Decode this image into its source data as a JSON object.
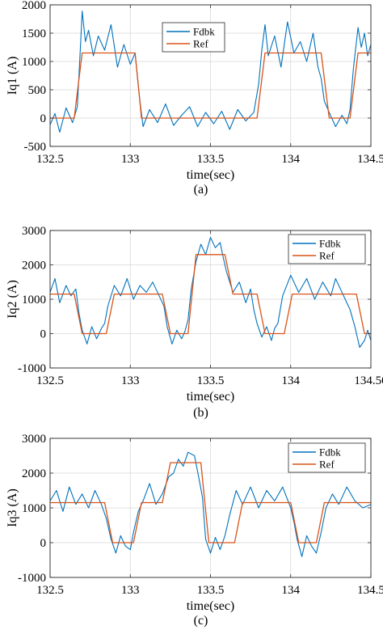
{
  "chart_data": [
    {
      "type": "line",
      "panel_caption": "(a)",
      "xlabel": "time(sec)",
      "ylabel": "Iq1 (A)",
      "xlim": [
        132.5,
        134.5
      ],
      "ylim": [
        -500,
        2000
      ],
      "xticks": [
        132.5,
        133,
        133.5,
        134,
        134.5
      ],
      "xtick_labels": [
        "132.5",
        "133",
        "133.5",
        "134",
        "134.5"
      ],
      "yticks": [
        -500,
        0,
        500,
        1000,
        1500,
        2000
      ],
      "ytick_labels": [
        "-500",
        "0",
        "500",
        "1000",
        "1500",
        "2000"
      ],
      "grid": true,
      "legend_position": "top-right",
      "series": [
        {
          "name": "Fdbk",
          "color": "#0072BD",
          "x": [
            132.5,
            132.53,
            132.56,
            132.6,
            132.64,
            132.67,
            132.68,
            132.69,
            132.7,
            132.72,
            132.74,
            132.77,
            132.8,
            132.84,
            132.88,
            132.92,
            132.96,
            133.0,
            133.03,
            133.04,
            133.06,
            133.08,
            133.12,
            133.17,
            133.22,
            133.27,
            133.32,
            133.37,
            133.42,
            133.47,
            133.52,
            133.57,
            133.62,
            133.67,
            133.72,
            133.77,
            133.8,
            133.82,
            133.84,
            133.86,
            133.9,
            133.94,
            133.98,
            134.02,
            134.06,
            134.1,
            134.14,
            134.17,
            134.19,
            134.21,
            134.24,
            134.28,
            134.32,
            134.35,
            134.37,
            134.39,
            134.42,
            134.44,
            134.46,
            134.48,
            134.5
          ],
          "y": [
            -120,
            80,
            -250,
            180,
            -80,
            200,
            750,
            1300,
            1890,
            1350,
            1550,
            1100,
            1450,
            1200,
            1650,
            900,
            1300,
            950,
            1150,
            850,
            300,
            -150,
            150,
            -80,
            250,
            -130,
            50,
            200,
            -150,
            100,
            -100,
            120,
            -200,
            150,
            -50,
            100,
            600,
            1200,
            1650,
            1100,
            1450,
            900,
            1700,
            1150,
            1350,
            1000,
            1500,
            900,
            700,
            300,
            100,
            -150,
            50,
            -100,
            150,
            850,
            1600,
            1250,
            1500,
            1100,
            1300
          ]
        },
        {
          "name": "Ref",
          "color": "#D95319",
          "x": [
            132.5,
            132.65,
            132.7,
            133.03,
            133.07,
            133.79,
            133.84,
            134.19,
            134.24,
            134.37,
            134.42,
            134.5
          ],
          "y": [
            0,
            0,
            1150,
            1150,
            0,
            0,
            1150,
            1150,
            0,
            0,
            1150,
            1150
          ]
        }
      ]
    },
    {
      "type": "line",
      "panel_caption": "(b)",
      "xlabel": "time(sec)",
      "ylabel": "Iq2 (A)",
      "xlim": [
        132.5,
        134.5
      ],
      "ylim": [
        -1000,
        3000
      ],
      "xticks": [
        132.5,
        133,
        133.5,
        134,
        134.5
      ],
      "xtick_labels": [
        "132.5",
        "133",
        "133.5",
        "134",
        "134.50"
      ],
      "yticks": [
        -1000,
        0,
        1000,
        2000,
        3000
      ],
      "ytick_labels": [
        "-1000",
        "0",
        "1000",
        "2000",
        "3000"
      ],
      "grid": true,
      "legend_position": "top-right",
      "series": [
        {
          "name": "Fdbk",
          "color": "#0072BD",
          "x": [
            132.5,
            132.53,
            132.56,
            132.6,
            132.63,
            132.66,
            132.68,
            132.7,
            132.73,
            132.76,
            132.79,
            132.82,
            132.84,
            132.86,
            132.9,
            132.94,
            132.98,
            133.02,
            133.06,
            133.1,
            133.14,
            133.18,
            133.21,
            133.23,
            133.26,
            133.29,
            133.32,
            133.34,
            133.36,
            133.38,
            133.41,
            133.44,
            133.47,
            133.5,
            133.53,
            133.56,
            133.58,
            133.6,
            133.64,
            133.68,
            133.72,
            133.75,
            133.77,
            133.79,
            133.82,
            133.85,
            133.88,
            133.9,
            133.92,
            133.95,
            134.0,
            134.05,
            134.1,
            134.15,
            134.2,
            134.25,
            134.28,
            134.31,
            134.34,
            134.37,
            134.4,
            134.43,
            134.46,
            134.48,
            134.5
          ],
          "y": [
            1200,
            1600,
            900,
            1400,
            1100,
            1300,
            600,
            100,
            -300,
            200,
            -150,
            150,
            300,
            800,
            1400,
            1100,
            1600,
            1000,
            1400,
            1200,
            1500,
            1100,
            800,
            200,
            -300,
            100,
            -150,
            50,
            400,
            1300,
            2100,
            2600,
            2300,
            2800,
            2500,
            2650,
            2200,
            1800,
            1200,
            1500,
            900,
            1300,
            700,
            300,
            -100,
            200,
            -200,
            150,
            300,
            1100,
            1700,
            1200,
            1600,
            1000,
            1500,
            1100,
            1600,
            1300,
            1000,
            700,
            200,
            -400,
            -200,
            100,
            -200
          ]
        },
        {
          "name": "Ref",
          "color": "#D95319",
          "x": [
            132.5,
            132.65,
            132.7,
            132.85,
            132.9,
            133.2,
            133.25,
            133.36,
            133.41,
            133.59,
            133.64,
            133.79,
            133.84,
            133.96,
            134.01,
            134.41,
            134.46,
            134.5
          ],
          "y": [
            1150,
            1150,
            0,
            0,
            1150,
            1150,
            0,
            0,
            2300,
            2300,
            1150,
            1150,
            0,
            0,
            1150,
            1150,
            0,
            0
          ]
        }
      ]
    },
    {
      "type": "line",
      "panel_caption": "(c)",
      "xlabel": "time(sec)",
      "ylabel": "Iq3 (A)",
      "xlim": [
        132.5,
        134.5
      ],
      "ylim": [
        -1000,
        3000
      ],
      "xticks": [
        132.5,
        133,
        133.5,
        134,
        134.5
      ],
      "xtick_labels": [
        "132.5",
        "133",
        "133.5",
        "134",
        "134.5"
      ],
      "yticks": [
        -1000,
        0,
        1000,
        2000,
        3000
      ],
      "ytick_labels": [
        "-1000",
        "0",
        "1000",
        "2000",
        "3000"
      ],
      "grid": true,
      "legend_position": "top-right",
      "series": [
        {
          "name": "Fdbk",
          "color": "#0072BD",
          "x": [
            132.5,
            132.54,
            132.58,
            132.62,
            132.66,
            132.7,
            132.74,
            132.78,
            132.82,
            132.85,
            132.88,
            132.91,
            132.94,
            132.97,
            133.0,
            133.02,
            133.05,
            133.08,
            133.12,
            133.16,
            133.2,
            133.24,
            133.27,
            133.3,
            133.33,
            133.36,
            133.4,
            133.43,
            133.45,
            133.47,
            133.5,
            133.53,
            133.56,
            133.59,
            133.62,
            133.66,
            133.7,
            133.75,
            133.8,
            133.85,
            133.9,
            133.95,
            134.0,
            134.02,
            134.04,
            134.07,
            134.1,
            134.13,
            134.16,
            134.19,
            134.22,
            134.26,
            134.3,
            134.35,
            134.4,
            134.45,
            134.5
          ],
          "y": [
            1200,
            1500,
            900,
            1600,
            1100,
            1400,
            1000,
            1500,
            1100,
            700,
            100,
            -300,
            200,
            -100,
            -200,
            300,
            900,
            1200,
            1700,
            1100,
            1400,
            1900,
            2000,
            2400,
            2200,
            2600,
            2500,
            1800,
            1300,
            100,
            -300,
            150,
            -200,
            200,
            800,
            1500,
            1100,
            1600,
            1000,
            1500,
            1200,
            1600,
            1000,
            600,
            100,
            -400,
            200,
            -100,
            -300,
            300,
            1000,
            1400,
            1100,
            1600,
            1200,
            1000,
            1100
          ]
        },
        {
          "name": "Ref",
          "color": "#D95319",
          "x": [
            132.5,
            132.84,
            132.89,
            133.02,
            133.07,
            133.2,
            133.25,
            133.44,
            133.49,
            133.65,
            133.7,
            134.0,
            134.05,
            134.16,
            134.21,
            134.5
          ],
          "y": [
            1150,
            1150,
            0,
            0,
            1150,
            1150,
            2300,
            2300,
            0,
            0,
            1150,
            1150,
            0,
            0,
            1150,
            1150
          ]
        }
      ]
    }
  ]
}
